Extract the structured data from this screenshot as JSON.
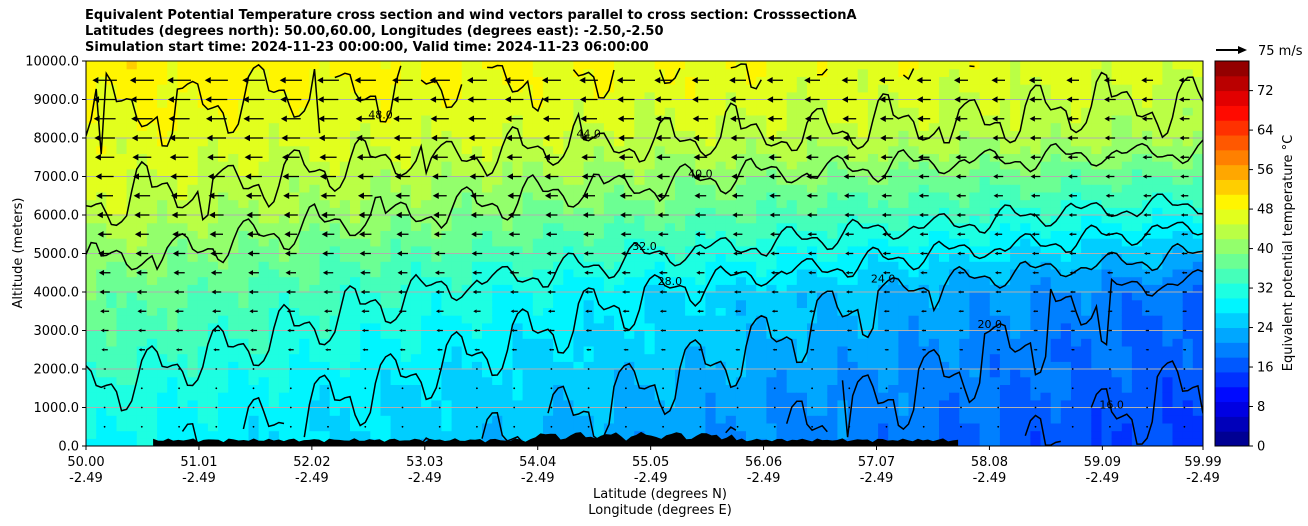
{
  "chart_data": {
    "type": "contour",
    "title_lines": [
      "Equivalent Potential Temperature cross section and wind vectors parallel to cross section: CrosssectionA",
      "Latitudes (degrees north): 50.00,60.00, Longitudes (degrees east): -2.50,-2.50",
      "Simulation start time: 2024-11-23 00:00:00, Valid time: 2024-11-23 06:00:00"
    ],
    "xlabel_lines": [
      "Latitude (degrees N)",
      "Longitude (degrees E)"
    ],
    "ylabel": "Altitude (meters)",
    "x_ticks": [
      {
        "lat": "50.00",
        "lon": "-2.49"
      },
      {
        "lat": "51.01",
        "lon": "-2.49"
      },
      {
        "lat": "52.02",
        "lon": "-2.49"
      },
      {
        "lat": "53.03",
        "lon": "-2.49"
      },
      {
        "lat": "54.04",
        "lon": "-2.49"
      },
      {
        "lat": "55.05",
        "lon": "-2.49"
      },
      {
        "lat": "56.06",
        "lon": "-2.49"
      },
      {
        "lat": "57.07",
        "lon": "-2.49"
      },
      {
        "lat": "58.08",
        "lon": "-2.49"
      },
      {
        "lat": "59.09",
        "lon": "-2.49"
      },
      {
        "lat": "59.99",
        "lon": "-2.49"
      }
    ],
    "xlim": [
      50.0,
      59.99
    ],
    "y_ticks": [
      "0.0",
      "1000.0",
      "2000.0",
      "3000.0",
      "4000.0",
      "5000.0",
      "6000.0",
      "7000.0",
      "8000.0",
      "9000.0",
      "10000.0"
    ],
    "ylim": [
      0,
      10000
    ],
    "grid": "horizontal",
    "colorbar": {
      "label": "Equivalent potential temperature °C",
      "ticks": [
        "0",
        "8",
        "16",
        "24",
        "32",
        "40",
        "48",
        "56",
        "64",
        "72"
      ],
      "range": [
        0,
        78
      ],
      "colormap": "jet"
    },
    "quiver_key": "75 m/s",
    "contour_levels": [
      {
        "value": 16.0,
        "label": "16.0"
      },
      {
        "value": 20.0,
        "label": "20.0"
      },
      {
        "value": 24.0,
        "label": "24.0"
      },
      {
        "value": 28.0,
        "label": "28.0"
      },
      {
        "value": 32.0,
        "label": "32.0"
      },
      {
        "value": 40.0,
        "label": "40.0"
      },
      {
        "value": 44.0,
        "label": "44.0"
      },
      {
        "value": 48.0,
        "label": "48.0"
      }
    ],
    "theta_e_profile_start": [
      {
        "alt": 0,
        "value": 30
      },
      {
        "alt": 1500,
        "value": 32
      },
      {
        "alt": 4000,
        "value": 38
      },
      {
        "alt": 6000,
        "value": 44
      },
      {
        "alt": 10000,
        "value": 50
      }
    ],
    "theta_e_profile_end": [
      {
        "alt": 0,
        "value": 14
      },
      {
        "alt": 4000,
        "value": 18
      },
      {
        "alt": 6000,
        "value": 30
      },
      {
        "alt": 8000,
        "value": 42
      },
      {
        "alt": 10000,
        "value": 46
      }
    ]
  }
}
